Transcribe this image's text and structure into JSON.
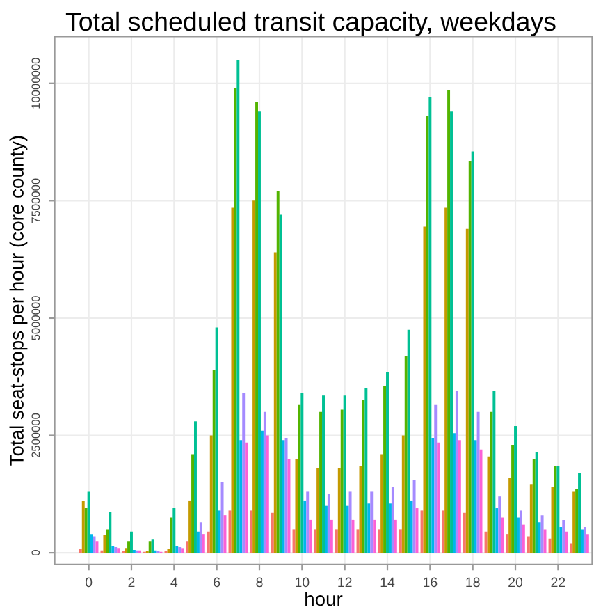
{
  "chart_data": {
    "type": "bar",
    "title": "Total scheduled transit capacity, weekdays",
    "xlabel": "hour",
    "ylabel": "Total seat-stops per hour (core county)",
    "x": [
      0,
      1,
      2,
      3,
      4,
      5,
      6,
      7,
      8,
      9,
      10,
      11,
      12,
      13,
      14,
      15,
      16,
      17,
      18,
      19,
      20,
      21,
      22,
      23
    ],
    "series": [
      {
        "color": "#f8766d",
        "values": [
          80000,
          50000,
          30000,
          20000,
          30000,
          250000,
          450000,
          900000,
          900000,
          850000,
          500000,
          500000,
          500000,
          500000,
          500000,
          500000,
          900000,
          900000,
          850000,
          450000,
          400000,
          350000,
          300000,
          200000
        ]
      },
      {
        "color": "#c49a00",
        "values": [
          1100000,
          380000,
          100000,
          30000,
          80000,
          1100000,
          2500000,
          7350000,
          7500000,
          6400000,
          2000000,
          1800000,
          1800000,
          1850000,
          2100000,
          2500000,
          6950000,
          7350000,
          6900000,
          2050000,
          1600000,
          1450000,
          1400000,
          1300000
        ]
      },
      {
        "color": "#53b400",
        "values": [
          950000,
          500000,
          250000,
          250000,
          750000,
          2100000,
          3900000,
          9900000,
          9600000,
          7700000,
          3150000,
          3000000,
          3050000,
          3250000,
          3550000,
          4200000,
          9300000,
          9850000,
          8350000,
          3000000,
          2300000,
          2000000,
          1850000,
          1350000
        ]
      },
      {
        "color": "#00c094",
        "values": [
          1300000,
          860000,
          450000,
          280000,
          950000,
          2800000,
          4800000,
          10500000,
          9400000,
          7200000,
          3400000,
          3350000,
          3350000,
          3500000,
          3850000,
          4750000,
          9700000,
          9400000,
          8550000,
          3450000,
          2700000,
          2150000,
          1850000,
          1700000
        ]
      },
      {
        "color": "#00b6eb",
        "values": [
          400000,
          150000,
          60000,
          50000,
          150000,
          450000,
          900000,
          2400000,
          2600000,
          2400000,
          1100000,
          1000000,
          1000000,
          1050000,
          1050000,
          1100000,
          2450000,
          2550000,
          2400000,
          950000,
          750000,
          650000,
          550000,
          500000
        ]
      },
      {
        "color": "#a58aff",
        "values": [
          350000,
          120000,
          50000,
          30000,
          120000,
          650000,
          1500000,
          3400000,
          3000000,
          2450000,
          1300000,
          1250000,
          1300000,
          1300000,
          1400000,
          1550000,
          3150000,
          3450000,
          3000000,
          1200000,
          900000,
          800000,
          700000,
          550000
        ]
      },
      {
        "color": "#fb61d7",
        "values": [
          250000,
          100000,
          50000,
          20000,
          100000,
          400000,
          800000,
          2350000,
          2500000,
          2000000,
          700000,
          700000,
          700000,
          700000,
          700000,
          950000,
          2350000,
          2400000,
          2200000,
          750000,
          600000,
          500000,
          450000,
          400000
        ]
      }
    ],
    "xlim": [
      -1.6,
      23.6
    ],
    "xticks": [
      0,
      2,
      4,
      6,
      8,
      10,
      12,
      14,
      16,
      18,
      20,
      22
    ],
    "ylim": [
      -250000,
      11000000
    ],
    "yticks": [
      0,
      2500000,
      5000000,
      7500000,
      10000000
    ],
    "grid": true
  }
}
